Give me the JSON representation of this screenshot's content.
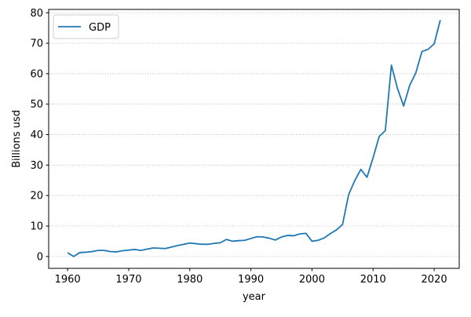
{
  "chart_data": {
    "type": "line",
    "xlabel": "year",
    "ylabel": "Billions usd",
    "xlim": [
      1956.9,
      2024.1
    ],
    "ylim": [
      -3.9,
      81.1
    ],
    "x_ticks": [
      1960,
      1970,
      1980,
      1990,
      2000,
      2010,
      2020
    ],
    "x_tick_labels": [
      "1960",
      "1970",
      "1980",
      "1990",
      "2000",
      "2010",
      "2020"
    ],
    "y_ticks": [
      0,
      10,
      20,
      30,
      40,
      50,
      60,
      70,
      80
    ],
    "y_tick_labels": [
      "0",
      "10",
      "20",
      "30",
      "40",
      "50",
      "60",
      "70",
      "80"
    ],
    "grid": "horizontal dotted",
    "legend": {
      "position": "top-left"
    },
    "series": [
      {
        "name": "GDP",
        "color": "#1f77b4",
        "x": [
          1960,
          1961,
          1962,
          1963,
          1964,
          1965,
          1966,
          1967,
          1968,
          1969,
          1970,
          1971,
          1972,
          1973,
          1974,
          1975,
          1976,
          1977,
          1978,
          1979,
          1980,
          1981,
          1982,
          1983,
          1984,
          1985,
          1986,
          1987,
          1988,
          1989,
          1990,
          1991,
          1992,
          1993,
          1994,
          1995,
          1996,
          1997,
          1998,
          1999,
          2000,
          2001,
          2002,
          2003,
          2004,
          2005,
          2006,
          2007,
          2008,
          2009,
          2010,
          2011,
          2012,
          2013,
          2014,
          2015,
          2016,
          2017,
          2018,
          2019,
          2020,
          2021
        ],
        "y": [
          1.2,
          0.0,
          1.3,
          1.4,
          1.6,
          2.0,
          2.0,
          1.6,
          1.5,
          1.9,
          2.1,
          2.3,
          2.0,
          2.4,
          2.8,
          2.7,
          2.6,
          3.1,
          3.6,
          4.0,
          4.4,
          4.2,
          4.0,
          4.0,
          4.3,
          4.5,
          5.6,
          5.0,
          5.2,
          5.3,
          5.9,
          6.5,
          6.4,
          6.0,
          5.4,
          6.4,
          6.9,
          6.8,
          7.4,
          7.6,
          5.0,
          5.3,
          6.1,
          7.5,
          8.7,
          10.5,
          20.3,
          24.9,
          28.6,
          26.0,
          32.4,
          39.4,
          41.3,
          62.8,
          55.1,
          49.4,
          56.2,
          60.3,
          67.3,
          68.0,
          69.8,
          77.6
        ]
      }
    ]
  }
}
